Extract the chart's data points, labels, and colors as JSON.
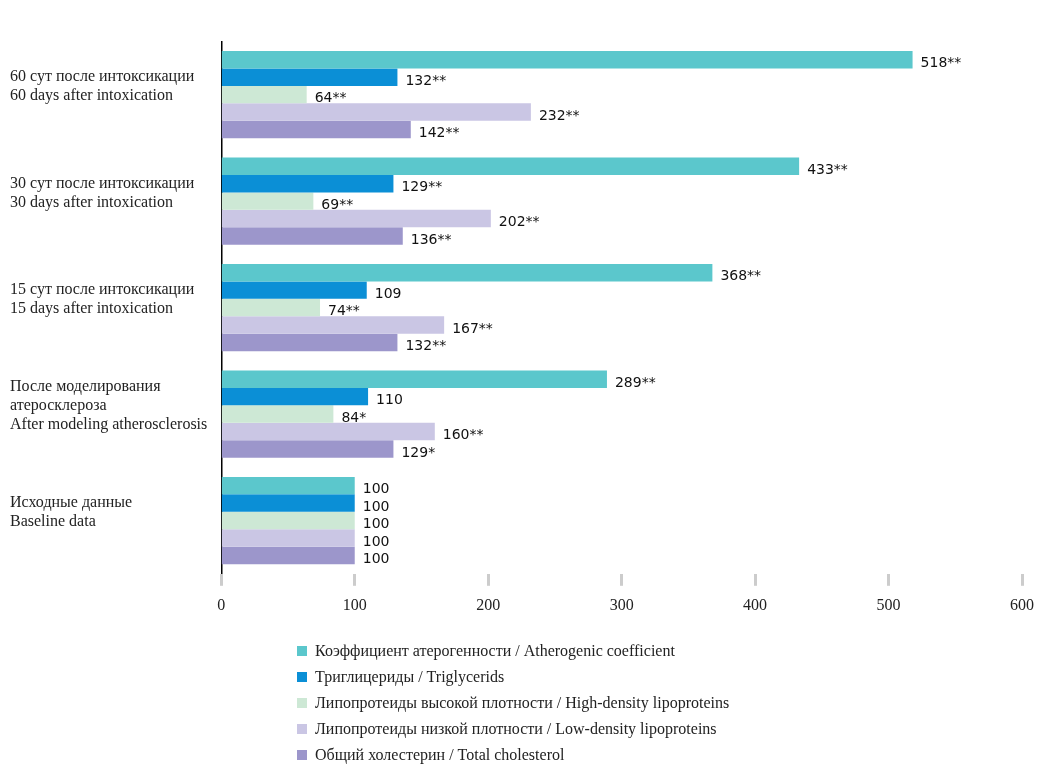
{
  "chart_data": {
    "type": "bar",
    "orientation": "horizontal",
    "categories": [
      "60 сут после интоксикации\n60 days after intoxication",
      "30 сут после интоксикации\n30 days after intoxication",
      "15 сут после интоксикации\n15 days after intoxication",
      "После моделирования\nатеросклероза\nAfter modeling atherosclerosis",
      "Исходные данные\nBaseline data"
    ],
    "series": [
      {
        "name": "Коэффициент атерогенности / Atherogenic coefficient",
        "color": "#5bc7cc",
        "values": [
          518,
          433,
          368,
          289,
          100
        ],
        "value_labels": [
          "518**",
          "433**",
          "368**",
          "289**",
          "100"
        ]
      },
      {
        "name": "Триглицериды / Triglycerids",
        "color": "#0b8fd6",
        "values": [
          132,
          129,
          109,
          110,
          100
        ],
        "value_labels": [
          "132**",
          "129**",
          "109",
          "110",
          "100"
        ]
      },
      {
        "name": "Липопротеиды высокой плотности / High-density lipoproteins",
        "color": "#cde8d5",
        "values": [
          64,
          69,
          74,
          84,
          100
        ],
        "value_labels": [
          "64**",
          "69**",
          "74**",
          "84*",
          "100"
        ]
      },
      {
        "name": "Липопротеиды низкой плотности / Low-density lipoproteins",
        "color": "#cac6e4",
        "values": [
          232,
          202,
          167,
          160,
          100
        ],
        "value_labels": [
          "232**",
          "202**",
          "167**",
          "160**",
          "100"
        ]
      },
      {
        "name": "Общий холестерин / Total cholesterol",
        "color": "#9c96cb",
        "values": [
          142,
          136,
          132,
          129,
          100
        ],
        "value_labels": [
          "142**",
          "136**",
          "132**",
          "129*",
          "100"
        ]
      }
    ],
    "xlim": [
      0,
      600
    ],
    "xticks": [
      0,
      100,
      200,
      300,
      400,
      500,
      600
    ],
    "grid": false,
    "legend": "bottom"
  }
}
